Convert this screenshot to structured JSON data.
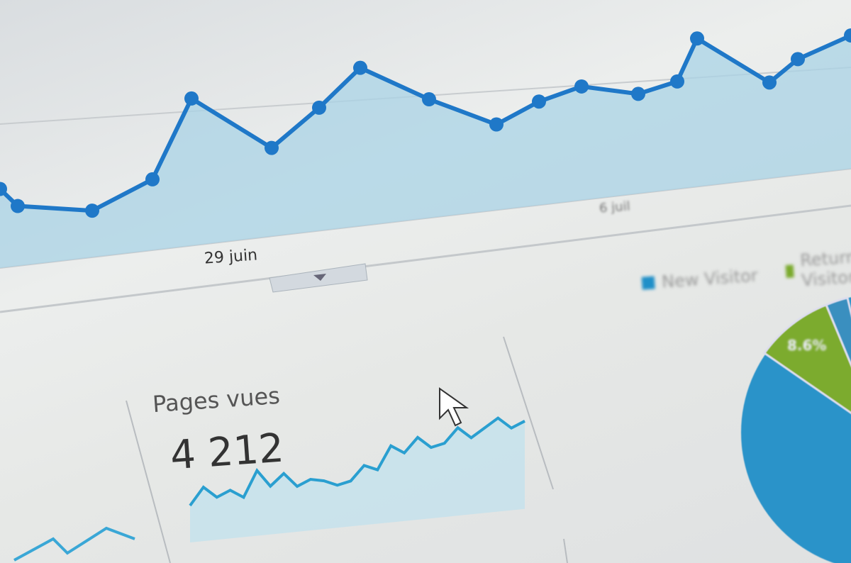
{
  "chart_data": [
    {
      "type": "area",
      "title": "",
      "x_tick_labels": [
        "29 juin",
        "6 juil"
      ],
      "values": [
        34,
        26,
        21,
        33,
        70,
        44,
        63,
        83,
        65,
        49,
        61,
        69,
        63,
        70,
        98,
        67,
        83,
        100
      ],
      "color": "#1f78c8",
      "fill": "#a9d3e6",
      "grid": true
    },
    {
      "type": "line",
      "title": "Pages vues",
      "value_label": "4 212",
      "values": [
        8,
        14,
        10,
        12,
        9,
        18,
        12,
        16,
        11,
        13,
        12,
        10,
        11,
        16,
        14,
        22,
        19,
        24,
        20,
        21,
        26,
        22,
        25,
        28,
        24,
        26
      ],
      "color": "#2a9fd0"
    },
    {
      "type": "pie",
      "legend": [
        "New Visitor",
        "Returning Visitor"
      ],
      "legend_placement": "top",
      "slice_labels": [
        "8.6%"
      ],
      "colors": [
        "#1f8fc8",
        "#7aaa2c"
      ]
    }
  ],
  "ui": {
    "dropdown_icon": "caret-down-icon",
    "cursor_icon": "mouse-pointer-icon"
  }
}
